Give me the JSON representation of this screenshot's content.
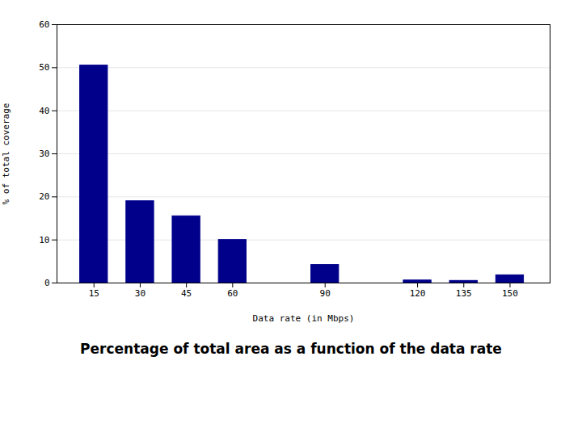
{
  "chart_data": {
    "type": "bar",
    "caption": "Percentage of total area as a function of the data rate",
    "xlabel": "Data rate (in Mbps)",
    "ylabel": "% of total coverage",
    "x": [
      15,
      30,
      45,
      60,
      90,
      120,
      135,
      150
    ],
    "values": [
      50.5,
      19.0,
      15.5,
      10.0,
      4.2,
      0.6,
      0.5,
      1.8
    ],
    "color": "#00008B",
    "xlim": [
      3,
      163
    ],
    "xticks": [
      15,
      30,
      45,
      60,
      90,
      120,
      135,
      150
    ],
    "ylim": [
      0,
      60
    ],
    "yticks": [
      0,
      10,
      20,
      30,
      40,
      50,
      60
    ],
    "grid": true
  }
}
